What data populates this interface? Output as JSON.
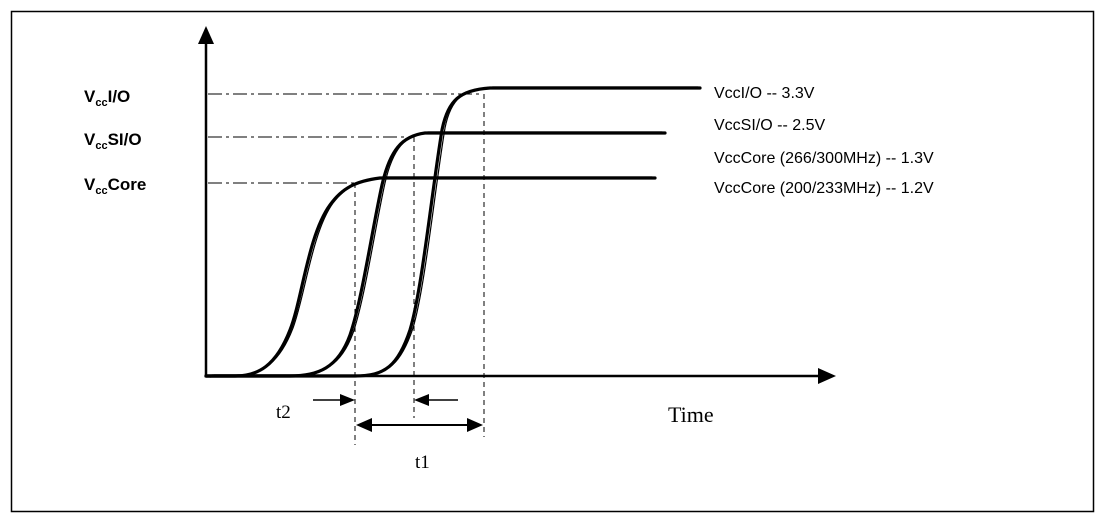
{
  "left_labels": [
    {
      "prefix": "V",
      "sub": "cc",
      "suffix": "I/O"
    },
    {
      "prefix": "V",
      "sub": "cc",
      "suffix": "SI/O"
    },
    {
      "prefix": "V",
      "sub": "cc",
      "suffix": "Core"
    }
  ],
  "legend": [
    "VccI/O -- 3.3V",
    "VccSI/O -- 2.5V",
    "VccCore (266/300MHz) -- 1.3V",
    "VccCore (200/233MHz) -- 1.2V"
  ],
  "axis": {
    "x_label": "Time"
  },
  "intervals": {
    "t2": "t2",
    "t1": "t1"
  },
  "colors": {
    "ink": "#000000",
    "background": "#ffffff"
  }
}
